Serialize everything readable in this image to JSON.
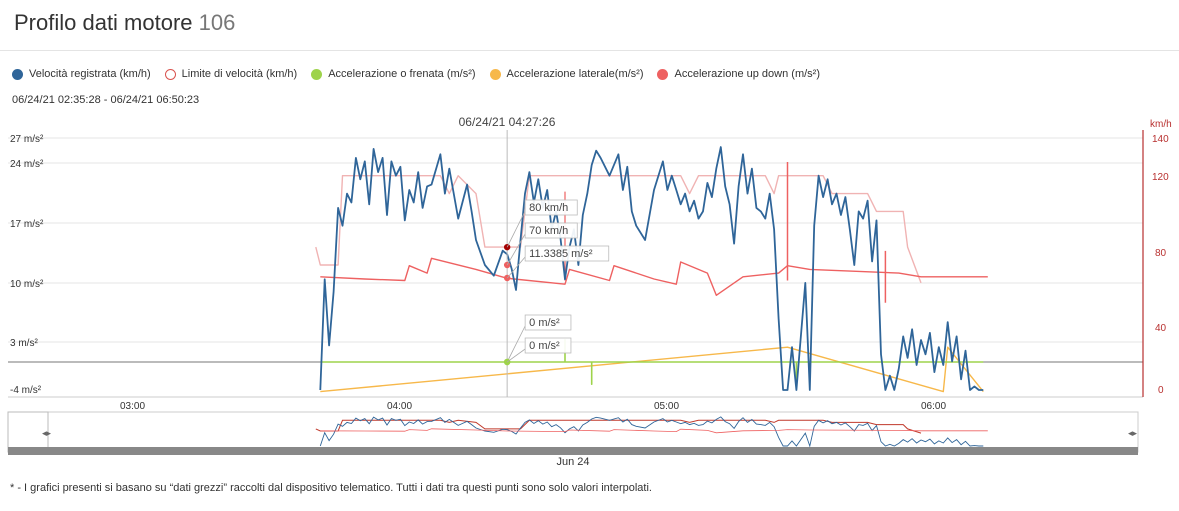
{
  "page": {
    "title": "Profilo dati motore",
    "title_number": "106",
    "date_range": "06/24/21 02:35:28 - 06/24/21 06:50:23",
    "footnote": "* - I grafici presenti si basano su “dati grezzi” raccolti dal dispositivo telematico. Tutti i dati tra questi punti sono solo valori interpolati."
  },
  "legend": [
    {
      "label": "Velocità registrata (km/h)",
      "color": "#2f6599",
      "style": "filled"
    },
    {
      "label": "Limite di velocità (km/h)",
      "color": "#d9534f",
      "style": "hollow"
    },
    {
      "label": "Accelerazione o frenata (m/s²)",
      "color": "#9ed34b",
      "style": "filled"
    },
    {
      "label": "Accelerazione laterale(m/s²)",
      "color": "#f7b84a",
      "style": "filled"
    },
    {
      "label": "Accelerazione up down (m/s²)",
      "color": "#ee6161",
      "style": "filled"
    }
  ],
  "colors": {
    "speed": "#2f6599",
    "limit": "#f0b3b3",
    "accel": "#9ed34b",
    "lateral": "#f7b84a",
    "updown": "#ee6161",
    "right_axis": "#b8302f"
  },
  "chart_data": {
    "type": "line",
    "title": "",
    "x_axis": {
      "range": [
        "02:35",
        "06:50"
      ],
      "ticks": [
        "03:00",
        "04:00",
        "05:00",
        "06:00"
      ]
    },
    "y_axis_left": {
      "unit": "m/s²",
      "ticks": [
        "27 m/s²",
        "24 m/s²",
        "17 m/s²",
        "10 m/s²",
        "3 m/s²",
        "-4 m/s²"
      ],
      "range": [
        -4,
        27
      ]
    },
    "y_axis_right": {
      "unit": "km/h",
      "ticks": [
        "140",
        "120",
        "80",
        "40",
        "0"
      ],
      "range": [
        0,
        140
      ]
    },
    "crosshair": {
      "time_label": "06/24/21 04:27:26",
      "time": "04:27",
      "tooltips": [
        "80 km/h",
        "70 km/h",
        "11.3385 m/s²",
        "0 m/s²",
        "0 m/s²"
      ]
    },
    "navigator": {
      "label": "Jun 24"
    },
    "series": [
      {
        "name": "Velocità registrata (km/h)",
        "axis": "right",
        "points": [
          [
            "03:45",
            0
          ],
          [
            "03:46",
            62
          ],
          [
            "03:47",
            25
          ],
          [
            "03:48",
            55
          ],
          [
            "03:49",
            102
          ],
          [
            "03:50",
            92
          ],
          [
            "03:51",
            110
          ],
          [
            "03:52",
            105
          ],
          [
            "03:53",
            130
          ],
          [
            "03:54",
            118
          ],
          [
            "03:55",
            128
          ],
          [
            "03:56",
            104
          ],
          [
            "03:57",
            135
          ],
          [
            "03:58",
            122
          ],
          [
            "03:59",
            130
          ],
          [
            "04:00",
            98
          ],
          [
            "04:01",
            128
          ],
          [
            "04:02",
            120
          ],
          [
            "04:03",
            125
          ],
          [
            "04:04",
            95
          ],
          [
            "04:05",
            112
          ],
          [
            "04:06",
            105
          ],
          [
            "04:07",
            122
          ],
          [
            "04:08",
            102
          ],
          [
            "04:09",
            114
          ],
          [
            "04:10",
            115
          ],
          [
            "04:12",
            132
          ],
          [
            "04:13",
            110
          ],
          [
            "04:14",
            124
          ],
          [
            "04:16",
            96
          ],
          [
            "04:18",
            115
          ],
          [
            "04:19",
            100
          ],
          [
            "04:20",
            84
          ],
          [
            "04:22",
            70
          ],
          [
            "04:24",
            64
          ],
          [
            "04:26",
            78
          ],
          [
            "04:27",
            76
          ],
          [
            "04:28",
            68
          ],
          [
            "04:29",
            56
          ],
          [
            "04:30",
            84
          ],
          [
            "04:31",
            110
          ],
          [
            "04:32",
            122
          ],
          [
            "04:33",
            105
          ],
          [
            "04:34",
            118
          ],
          [
            "04:35",
            102
          ],
          [
            "04:36",
            112
          ],
          [
            "04:37",
            90
          ],
          [
            "04:38",
            100
          ],
          [
            "04:39",
            85
          ],
          [
            "04:40",
            62
          ],
          [
            "04:41",
            80
          ],
          [
            "04:42",
            90
          ],
          [
            "04:43",
            70
          ],
          [
            "04:44",
            98
          ],
          [
            "04:45",
            110
          ],
          [
            "04:46",
            126
          ],
          [
            "04:47",
            134
          ],
          [
            "04:48",
            130
          ],
          [
            "04:50",
            120
          ],
          [
            "04:52",
            132
          ],
          [
            "04:53",
            112
          ],
          [
            "04:54",
            125
          ],
          [
            "04:55",
            100
          ],
          [
            "04:56",
            92
          ],
          [
            "04:58",
            84
          ],
          [
            "05:00",
            112
          ],
          [
            "05:02",
            128
          ],
          [
            "05:03",
            112
          ],
          [
            "05:04",
            120
          ],
          [
            "05:05",
            112
          ],
          [
            "05:06",
            104
          ],
          [
            "05:07",
            110
          ],
          [
            "05:08",
            100
          ],
          [
            "05:09",
            106
          ],
          [
            "05:10",
            96
          ],
          [
            "05:11",
            100
          ],
          [
            "05:12",
            116
          ],
          [
            "05:13",
            108
          ],
          [
            "05:14",
            124
          ],
          [
            "05:15",
            136
          ],
          [
            "05:16",
            114
          ],
          [
            "05:17",
            104
          ],
          [
            "05:18",
            82
          ],
          [
            "05:19",
            114
          ],
          [
            "05:20",
            132
          ],
          [
            "05:21",
            110
          ],
          [
            "05:22",
            124
          ],
          [
            "05:23",
            102
          ],
          [
            "05:24",
            100
          ],
          [
            "05:25",
            96
          ],
          [
            "05:26",
            110
          ],
          [
            "05:27",
            90
          ],
          [
            "05:28",
            40
          ],
          [
            "05:29",
            0
          ],
          [
            "05:30",
            0
          ],
          [
            "05:31",
            24
          ],
          [
            "05:32",
            0
          ],
          [
            "05:34",
            60
          ],
          [
            "05:35",
            0
          ],
          [
            "05:36",
            92
          ],
          [
            "05:37",
            120
          ],
          [
            "05:38",
            108
          ],
          [
            "05:39",
            118
          ],
          [
            "05:40",
            104
          ],
          [
            "05:41",
            110
          ],
          [
            "05:42",
            98
          ],
          [
            "05:43",
            108
          ],
          [
            "05:44",
            90
          ],
          [
            "05:45",
            70
          ],
          [
            "05:46",
            100
          ],
          [
            "05:47",
            96
          ],
          [
            "05:48",
            106
          ],
          [
            "05:49",
            72
          ],
          [
            "05:50",
            95
          ],
          [
            "05:51",
            20
          ],
          [
            "05:52",
            0
          ],
          [
            "05:53",
            8
          ],
          [
            "05:54",
            0
          ],
          [
            "05:55",
            12
          ],
          [
            "05:56",
            30
          ],
          [
            "05:57",
            18
          ],
          [
            "05:58",
            34
          ],
          [
            "05:59",
            14
          ],
          [
            "06:00",
            28
          ],
          [
            "06:01",
            20
          ],
          [
            "06:02",
            32
          ],
          [
            "06:03",
            10
          ],
          [
            "06:04",
            24
          ],
          [
            "06:05",
            14
          ],
          [
            "06:06",
            38
          ],
          [
            "06:07",
            16
          ],
          [
            "06:08",
            30
          ],
          [
            "06:09",
            6
          ],
          [
            "06:10",
            22
          ],
          [
            "06:11",
            0
          ],
          [
            "06:12",
            2
          ],
          [
            "06:13",
            0
          ],
          [
            "06:14",
            0
          ]
        ]
      },
      {
        "name": "Limite di velocità (km/h)",
        "axis": "right",
        "points": [
          [
            "03:44",
            80
          ],
          [
            "03:45",
            70
          ],
          [
            "03:49",
            70
          ],
          [
            "03:50",
            120
          ],
          [
            "04:10",
            120
          ],
          [
            "04:12",
            120
          ],
          [
            "04:14",
            110
          ],
          [
            "04:16",
            120
          ],
          [
            "04:20",
            110
          ],
          [
            "04:22",
            80
          ],
          [
            "04:30",
            80
          ],
          [
            "04:32",
            120
          ],
          [
            "04:40",
            120
          ],
          [
            "04:42",
            120
          ],
          [
            "04:47",
            120
          ],
          [
            "04:48",
            120
          ],
          [
            "05:00",
            120
          ],
          [
            "05:06",
            120
          ],
          [
            "05:08",
            110
          ],
          [
            "05:10",
            120
          ],
          [
            "05:25",
            120
          ],
          [
            "05:27",
            110
          ],
          [
            "05:28",
            120
          ],
          [
            "05:38",
            120
          ],
          [
            "05:40",
            110
          ],
          [
            "05:45",
            110
          ],
          [
            "05:48",
            110
          ],
          [
            "05:50",
            100
          ],
          [
            "05:56",
            100
          ],
          [
            "05:57",
            80
          ],
          [
            "06:00",
            60
          ]
        ]
      },
      {
        "name": "Accelerazione o frenata (m/s²)",
        "axis": "left",
        "points": [
          [
            "03:45",
            0
          ],
          [
            "04:27",
            0
          ],
          [
            "04:40",
            0
          ],
          [
            "04:40",
            3
          ],
          [
            "04:40",
            0
          ],
          [
            "04:46",
            0
          ],
          [
            "04:46",
            -3
          ],
          [
            "04:46",
            0
          ],
          [
            "05:32",
            0
          ],
          [
            "05:32",
            -3
          ],
          [
            "05:32",
            0
          ],
          [
            "06:00",
            0
          ],
          [
            "06:14",
            0
          ]
        ]
      },
      {
        "name": "Accelerazione laterale(m/s²)",
        "axis": "left",
        "points": [
          [
            "03:45",
            -4
          ],
          [
            "05:30",
            2
          ],
          [
            "06:05",
            -4
          ],
          [
            "06:06",
            2
          ],
          [
            "06:14",
            -4
          ]
        ]
      },
      {
        "name": "Accelerazione up down (m/s²)",
        "axis": "left",
        "points": [
          [
            "03:45",
            11.5
          ],
          [
            "03:55",
            11.2
          ],
          [
            "04:04",
            11
          ],
          [
            "04:05",
            13
          ],
          [
            "04:09",
            12
          ],
          [
            "04:10",
            14
          ],
          [
            "04:20",
            12.5
          ],
          [
            "04:27",
            11.3
          ],
          [
            "04:40",
            10.5
          ],
          [
            "04:41",
            12.5
          ],
          [
            "04:50",
            11
          ],
          [
            "04:51",
            13
          ],
          [
            "05:00",
            11.2
          ],
          [
            "05:05",
            10.5
          ],
          [
            "05:06",
            13.5
          ],
          [
            "05:12",
            12
          ],
          [
            "05:14",
            9
          ],
          [
            "05:20",
            11.5
          ],
          [
            "05:28",
            12
          ],
          [
            "05:30",
            13
          ],
          [
            "05:35",
            12.5
          ],
          [
            "05:55",
            12
          ],
          [
            "06:00",
            11.5
          ],
          [
            "06:15",
            11.5
          ]
        ]
      }
    ]
  }
}
